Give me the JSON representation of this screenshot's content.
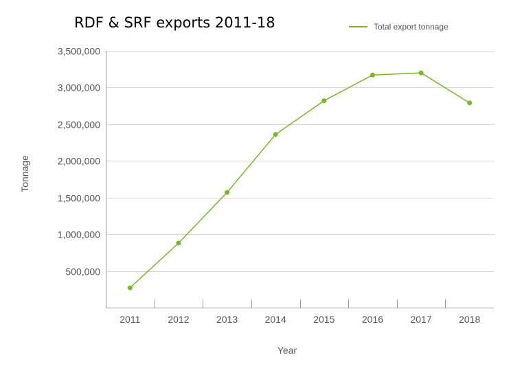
{
  "chart_data": {
    "type": "line",
    "title": "RDF & SRF exports 2011-18",
    "xlabel": "Year",
    "ylabel": "Tonnage",
    "categories": [
      "2011",
      "2012",
      "2013",
      "2014",
      "2015",
      "2016",
      "2017",
      "2018"
    ],
    "series": [
      {
        "name": "Total export tonnage",
        "color": "#76b82a",
        "values": [
          270000,
          880000,
          1570000,
          2360000,
          2820000,
          3170000,
          3200000,
          2790000
        ]
      }
    ],
    "ylim": [
      0,
      3500000
    ],
    "yticks": [
      500000,
      1000000,
      1500000,
      2000000,
      2500000,
      3000000,
      3500000
    ],
    "ytick_labels": [
      "500,000",
      "1,000,000",
      "1,500,000",
      "2,000,000",
      "2,500,000",
      "3,000,000",
      "3,500,000"
    ],
    "grid": true,
    "legend_position": "top-right",
    "gridline_color": "#d8d8d8",
    "axis_color": "#999999"
  }
}
